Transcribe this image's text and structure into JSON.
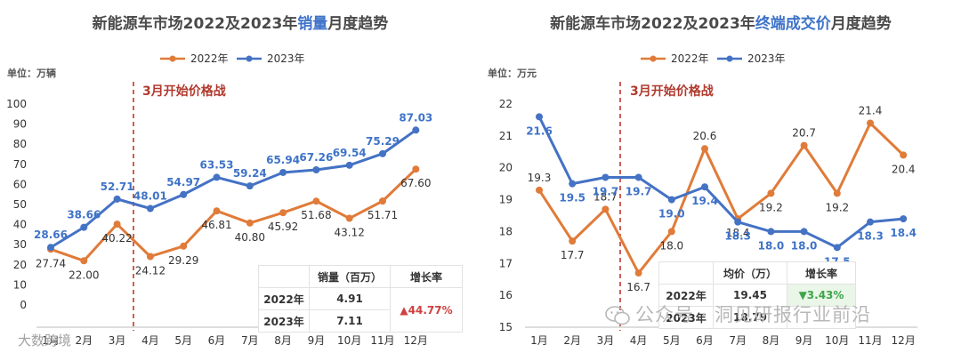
{
  "watermark": "公众号 · 洞见研报行业前沿",
  "watermark_corner": "大数跨境",
  "table_left": {
    "headers": [
      "",
      "销量（百万）",
      "增长率"
    ],
    "rows": [
      [
        "2022年",
        "4.91"
      ],
      [
        "2023年",
        "7.11"
      ]
    ],
    "growth": "▲44.77%"
  },
  "table_right": {
    "headers": [
      "",
      "均价（万）",
      "增长率"
    ],
    "rows": [
      [
        "2022年",
        "19.45"
      ],
      [
        "2023年",
        "18.79"
      ]
    ],
    "growth": "▼3.43%"
  },
  "chart_data": [
    {
      "type": "line",
      "title": "新能源车市场2022及2023年销量月度趋势",
      "title_prefix": "新能源车市场2022及2023年",
      "title_highlight": "销量",
      "title_suffix": "月度趋势",
      "unit": "单位：万辆",
      "annotation": "3月开始价格战",
      "categories": [
        "1月",
        "2月",
        "3月",
        "4月",
        "5月",
        "6月",
        "7月",
        "8月",
        "9月",
        "10月",
        "11月",
        "12月"
      ],
      "ylim": [
        0,
        100
      ],
      "yticks": [
        0,
        10,
        20,
        30,
        40,
        50,
        60,
        70,
        80,
        90,
        100
      ],
      "series": [
        {
          "name": "2022年",
          "color": "#e07b39",
          "values": [
            27.74,
            22.0,
            40.22,
            24.12,
            29.29,
            46.81,
            40.8,
            45.92,
            51.68,
            43.12,
            51.71,
            67.6
          ]
        },
        {
          "name": "2023年",
          "color": "#4472c4",
          "values": [
            28.66,
            38.66,
            52.71,
            48.01,
            54.97,
            63.53,
            59.24,
            65.94,
            67.26,
            69.54,
            75.29,
            87.03
          ]
        }
      ],
      "labels": {
        "2022年": [
          "27.74",
          "22.00",
          "40.22",
          "24.12",
          "29.29",
          "46.81",
          "40.80",
          "45.92",
          "51.68",
          "43.12",
          "51.71",
          "67.60"
        ],
        "2023年": [
          "28.66",
          "38.66",
          "52.71",
          "48.01",
          "54.97",
          "63.53",
          "59.24",
          "65.94",
          "67.26",
          "69.54",
          "75.29",
          "87.03"
        ]
      },
      "grid": false,
      "legend": "top"
    },
    {
      "type": "line",
      "title": "新能源车市场2022及2023年终端成交价月度趋势",
      "title_prefix": "新能源车市场2022及2023年",
      "title_highlight": "终端成交价",
      "title_suffix": "月度趋势",
      "unit": "单位：万元",
      "annotation": "3月开始价格战",
      "categories": [
        "1月",
        "2月",
        "3月",
        "4月",
        "5月",
        "6月",
        "7月",
        "8月",
        "9月",
        "10月",
        "11月",
        "12月"
      ],
      "ylim": [
        15,
        22
      ],
      "yticks": [
        15,
        16,
        17,
        18,
        19,
        20,
        21,
        22
      ],
      "series": [
        {
          "name": "2022年",
          "color": "#e07b39",
          "values": [
            19.3,
            17.7,
            18.7,
            16.7,
            18.0,
            20.6,
            18.4,
            19.2,
            20.7,
            19.2,
            21.4,
            20.4
          ]
        },
        {
          "name": "2023年",
          "color": "#4472c4",
          "values": [
            21.6,
            19.5,
            19.7,
            19.7,
            19.0,
            19.4,
            18.3,
            18.0,
            18.0,
            17.5,
            18.3,
            18.4
          ]
        }
      ],
      "labels": {
        "2022年": [
          "19.3",
          "17.7",
          "18.7",
          "16.7",
          "18.0",
          "20.6",
          "18.4",
          "19.2",
          "20.7",
          "19.2",
          "21.4",
          "20.4"
        ],
        "2023年": [
          "21.6",
          "19.5",
          "19.7",
          "19.7",
          "19.0",
          "19.4",
          "18.3",
          "18.0",
          "18.0",
          "17.5",
          "18.3",
          "18.4"
        ]
      },
      "grid": false,
      "legend": "top"
    }
  ]
}
